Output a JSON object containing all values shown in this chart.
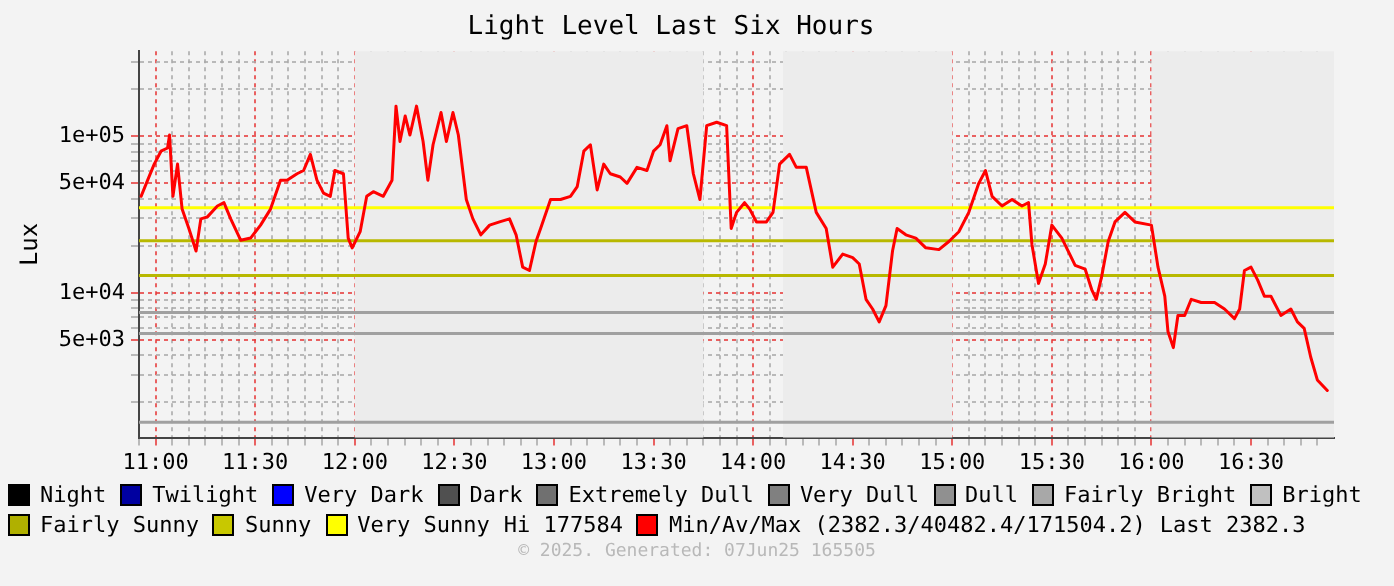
{
  "chart_data": {
    "type": "line",
    "title": "Light Level Last Six Hours",
    "ylabel": "Lux",
    "log": "y",
    "grid": true,
    "legend": "bottom",
    "marker": "none",
    "line_style": "solid",
    "xlim": [
      10.9167,
      16.9167
    ],
    "ylim": [
      1190,
      350000
    ],
    "xticks": [
      {
        "value": 10.9167,
        "label": null
      },
      {
        "value": 11,
        "label": "11:00"
      },
      {
        "value": 11.0833,
        "label": null
      },
      {
        "value": 11.1667,
        "label": null
      },
      {
        "value": 11.25,
        "label": null
      },
      {
        "value": 11.3333,
        "label": null
      },
      {
        "value": 11.4167,
        "label": null
      },
      {
        "value": 11.5,
        "label": "11:30"
      },
      {
        "value": 11.5833,
        "label": null
      },
      {
        "value": 11.6667,
        "label": null
      },
      {
        "value": 11.75,
        "label": null
      },
      {
        "value": 11.8333,
        "label": null
      },
      {
        "value": 11.9167,
        "label": null
      },
      {
        "value": 12,
        "label": "12:00"
      },
      {
        "value": 12.0833,
        "label": null
      },
      {
        "value": 12.1667,
        "label": null
      },
      {
        "value": 12.25,
        "label": null
      },
      {
        "value": 12.3333,
        "label": null
      },
      {
        "value": 12.4167,
        "label": null
      },
      {
        "value": 12.5,
        "label": "12:30"
      },
      {
        "value": 12.5833,
        "label": null
      },
      {
        "value": 12.6667,
        "label": null
      },
      {
        "value": 12.75,
        "label": null
      },
      {
        "value": 12.8333,
        "label": null
      },
      {
        "value": 12.9167,
        "label": null
      },
      {
        "value": 13,
        "label": "13:00"
      },
      {
        "value": 13.0833,
        "label": null
      },
      {
        "value": 13.1667,
        "label": null
      },
      {
        "value": 13.25,
        "label": null
      },
      {
        "value": 13.3333,
        "label": null
      },
      {
        "value": 13.4167,
        "label": null
      },
      {
        "value": 13.5,
        "label": "13:30"
      },
      {
        "value": 13.5833,
        "label": null
      },
      {
        "value": 13.6667,
        "label": null
      },
      {
        "value": 13.75,
        "label": null
      },
      {
        "value": 13.8333,
        "label": null
      },
      {
        "value": 13.9167,
        "label": null
      },
      {
        "value": 14,
        "label": "14:00"
      },
      {
        "value": 14.0833,
        "label": null
      },
      {
        "value": 14.1667,
        "label": null
      },
      {
        "value": 14.25,
        "label": null
      },
      {
        "value": 14.3333,
        "label": null
      },
      {
        "value": 14.4167,
        "label": null
      },
      {
        "value": 14.5,
        "label": "14:30"
      },
      {
        "value": 14.5833,
        "label": null
      },
      {
        "value": 14.6667,
        "label": null
      },
      {
        "value": 14.75,
        "label": null
      },
      {
        "value": 14.8333,
        "label": null
      },
      {
        "value": 14.9167,
        "label": null
      },
      {
        "value": 15,
        "label": "15:00"
      },
      {
        "value": 15.0833,
        "label": null
      },
      {
        "value": 15.1667,
        "label": null
      },
      {
        "value": 15.25,
        "label": null
      },
      {
        "value": 15.3333,
        "label": null
      },
      {
        "value": 15.4167,
        "label": null
      },
      {
        "value": 15.5,
        "label": "15:30"
      },
      {
        "value": 15.5833,
        "label": null
      },
      {
        "value": 15.6667,
        "label": null
      },
      {
        "value": 15.75,
        "label": null
      },
      {
        "value": 15.8333,
        "label": null
      },
      {
        "value": 15.9167,
        "label": null
      },
      {
        "value": 16,
        "label": "16:00"
      },
      {
        "value": 16.0833,
        "label": null
      },
      {
        "value": 16.1667,
        "label": null
      },
      {
        "value": 16.25,
        "label": null
      },
      {
        "value": 16.3333,
        "label": null
      },
      {
        "value": 16.4167,
        "label": null
      },
      {
        "value": 16.5,
        "label": "16:30"
      },
      {
        "value": 16.5833,
        "label": null
      },
      {
        "value": 16.6667,
        "label": null
      },
      {
        "value": 16.75,
        "label": null
      },
      {
        "value": 16.8333,
        "label": null
      }
    ],
    "yticks": [
      {
        "value": 2000,
        "label": null
      },
      {
        "value": 3000,
        "label": null
      },
      {
        "value": 4000,
        "label": null
      },
      {
        "value": 5000,
        "label": "5e+03"
      },
      {
        "value": 6000,
        "label": null
      },
      {
        "value": 7000,
        "label": null
      },
      {
        "value": 8000,
        "label": null
      },
      {
        "value": 9000,
        "label": null
      },
      {
        "value": 10000,
        "label": "1e+04"
      },
      {
        "value": 20000,
        "label": null
      },
      {
        "value": 30000,
        "label": null
      },
      {
        "value": 40000,
        "label": null
      },
      {
        "value": 50000,
        "label": "5e+04"
      },
      {
        "value": 60000,
        "label": null
      },
      {
        "value": 70000,
        "label": null
      },
      {
        "value": 80000,
        "label": null
      },
      {
        "value": 90000,
        "label": null
      },
      {
        "value": 100000,
        "label": "1e+05"
      },
      {
        "value": 200000,
        "label": null
      },
      {
        "value": 300000,
        "label": null
      }
    ],
    "bands": [
      {
        "axis": "x",
        "from": 12.0,
        "to": 13.75,
        "color": "#ececec"
      },
      {
        "axis": "x",
        "from": 14.15,
        "to": 15.0,
        "color": "#ececec"
      },
      {
        "axis": "x",
        "from": 16.0,
        "to": 16.9167,
        "color": "#ececec"
      }
    ],
    "ref_lines": [
      {
        "axis": "y",
        "value": 35000,
        "color": "#ffff00"
      },
      {
        "axis": "y",
        "value": 21500,
        "color": "#b8b800"
      },
      {
        "axis": "y",
        "value": 12900,
        "color": "#b8b800"
      },
      {
        "axis": "y",
        "value": 7500,
        "color": "#a0a0a0"
      },
      {
        "axis": "y",
        "value": 5500,
        "color": "#a0a0a0"
      },
      {
        "axis": "y",
        "value": 1490,
        "color": "#a0a0a0"
      }
    ],
    "annotations": [
      "Hi 177584",
      "Last 2382.3",
      "© 2025. Generated: 07Jun25 165505"
    ],
    "series": [
      {
        "name": "Night",
        "color": "#000000"
      },
      {
        "name": "Twilight",
        "color": "#0000a0"
      },
      {
        "name": "Very Dark",
        "color": "#0000ff"
      },
      {
        "name": "Dark",
        "color": "#505050"
      },
      {
        "name": "Extremely Dull",
        "color": "#707070"
      },
      {
        "name": "Very Dull",
        "color": "#808080"
      },
      {
        "name": "Dull",
        "color": "#909090"
      },
      {
        "name": "Fairly Bright",
        "color": "#a8a8a8"
      },
      {
        "name": "Bright",
        "color": "#c0c0c0"
      },
      {
        "name": "Fairly Sunny",
        "color": "#b0b000"
      },
      {
        "name": "Sunny",
        "color": "#c8c800"
      },
      {
        "name": "Very Sunny",
        "color": "#ffff00"
      },
      {
        "name": "Min/Av/Max (2382.3/40482.4/171504.2)",
        "color": "#ff0000",
        "x": [
          10.927,
          10.96,
          10.993,
          11.027,
          11.06,
          11.07,
          11.087,
          11.11,
          11.133,
          11.167,
          11.203,
          11.227,
          11.26,
          11.31,
          11.343,
          11.377,
          11.427,
          11.477,
          11.527,
          11.577,
          11.627,
          11.66,
          11.71,
          11.743,
          11.777,
          11.81,
          11.843,
          11.877,
          11.9,
          11.943,
          11.967,
          11.987,
          12.027,
          12.06,
          12.093,
          12.143,
          12.187,
          12.207,
          12.227,
          12.253,
          12.277,
          12.31,
          12.343,
          12.367,
          12.393,
          12.433,
          12.46,
          12.493,
          12.52,
          12.56,
          12.593,
          12.633,
          12.677,
          12.727,
          12.777,
          12.81,
          12.843,
          12.877,
          12.91,
          12.933,
          12.983,
          13.033,
          13.083,
          13.117,
          13.15,
          13.183,
          13.217,
          13.25,
          13.283,
          13.333,
          13.367,
          13.417,
          13.467,
          13.5,
          13.533,
          13.567,
          13.583,
          13.623,
          13.667,
          13.7,
          13.733,
          13.767,
          13.817,
          13.867,
          13.89,
          13.917,
          13.957,
          13.983,
          14.017,
          14.067,
          14.1,
          14.133,
          14.183,
          14.217,
          14.267,
          14.317,
          14.367,
          14.4,
          14.45,
          14.5,
          14.533,
          14.567,
          14.6,
          14.633,
          14.667,
          14.7,
          14.723,
          14.767,
          14.817,
          14.867,
          14.933,
          14.983,
          15.033,
          15.083,
          15.133,
          15.167,
          15.2,
          15.25,
          15.3,
          15.35,
          15.383,
          15.4,
          15.433,
          15.467,
          15.5,
          15.55,
          15.617,
          15.667,
          15.7,
          15.723,
          15.75,
          15.783,
          15.817,
          15.867,
          15.917,
          16.0,
          16.033,
          16.067,
          16.083,
          16.11,
          16.133,
          16.167,
          16.2,
          16.25,
          16.317,
          16.367,
          16.417,
          16.443,
          16.467,
          16.5,
          16.533,
          16.567,
          16.6,
          16.65,
          16.7,
          16.733,
          16.767,
          16.8,
          16.833,
          16.883
        ],
        "values": [
          41400,
          52500,
          66500,
          80400,
          84300,
          102000,
          41400,
          66500,
          34300,
          25800,
          18500,
          29700,
          30600,
          35900,
          37700,
          29700,
          21700,
          22400,
          27100,
          34300,
          52500,
          52500,
          57700,
          60500,
          76700,
          52500,
          43400,
          41400,
          60500,
          57700,
          22400,
          19400,
          24600,
          41400,
          44300,
          41400,
          52500,
          156000,
          92700,
          135000,
          102000,
          156000,
          92700,
          52500,
          88400,
          142000,
          92700,
          142000,
          102000,
          39500,
          29700,
          23500,
          27100,
          28400,
          29700,
          23500,
          14600,
          13900,
          21300,
          25800,
          39500,
          39500,
          41400,
          47800,
          80400,
          88400,
          45500,
          66500,
          57700,
          55000,
          50100,
          63400,
          60500,
          80400,
          88400,
          117000,
          69800,
          112000,
          117000,
          57700,
          39500,
          117000,
          123000,
          117000,
          25800,
          32700,
          37700,
          34300,
          28400,
          28400,
          32700,
          66500,
          76700,
          63400,
          63400,
          32700,
          25800,
          14600,
          17700,
          16800,
          15300,
          9100,
          7890,
          6530,
          8300,
          18500,
          25800,
          23500,
          22400,
          19400,
          18900,
          21300,
          24600,
          32700,
          50100,
          60500,
          41400,
          35900,
          39500,
          35900,
          37700,
          20400,
          11500,
          15300,
          27100,
          22400,
          15000,
          14200,
          10500,
          9100,
          12700,
          21300,
          28400,
          32700,
          28400,
          27100,
          14600,
          9530,
          5670,
          4470,
          7180,
          7180,
          9100,
          8680,
          8680,
          7890,
          6850,
          7890,
          13900,
          14600,
          12100,
          9530,
          9530,
          7180,
          7890,
          6530,
          5940,
          3880,
          2780,
          2382.3
        ]
      }
    ]
  }
}
